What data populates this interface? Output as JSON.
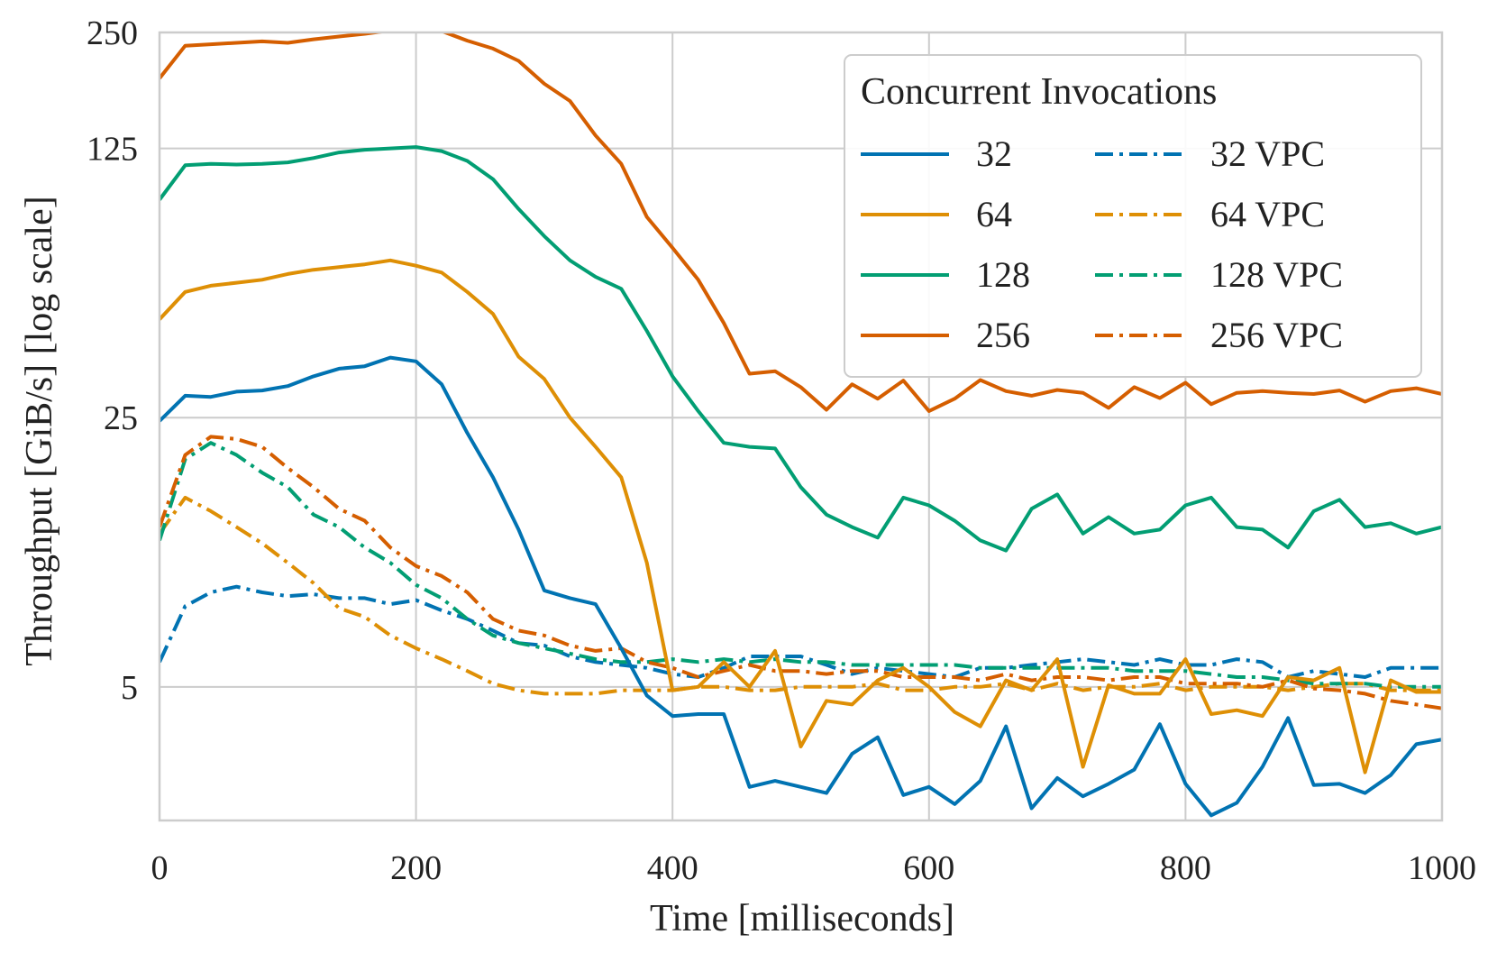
{
  "chart_data": {
    "type": "line",
    "title": "",
    "xlabel": "Time [milliseconds]",
    "ylabel": "Throughput [GiB/s] [log scale]",
    "xlim": [
      0,
      1000
    ],
    "ylim": [
      2.25,
      250
    ],
    "yscale": "log",
    "grid": true,
    "x_ticks": [
      0,
      200,
      400,
      600,
      800,
      1000
    ],
    "x_tick_labels": [
      "0",
      "200",
      "400",
      "600",
      "800",
      "1000"
    ],
    "y_ticks": [
      5,
      25,
      125,
      250
    ],
    "y_tick_labels": [
      "5",
      "25",
      "125",
      "250"
    ],
    "legend": {
      "title": "Concurrent Invocations",
      "placement": "top-right",
      "columns": 2
    },
    "x": [
      0,
      20,
      40,
      60,
      80,
      100,
      120,
      140,
      160,
      180,
      200,
      220,
      240,
      260,
      280,
      300,
      320,
      340,
      360,
      380,
      400,
      420,
      440,
      460,
      480,
      500,
      520,
      540,
      560,
      580,
      600,
      620,
      640,
      660,
      680,
      700,
      720,
      740,
      760,
      780,
      800,
      820,
      840,
      860,
      880,
      900,
      920,
      940,
      960,
      980,
      1000
    ],
    "series": [
      {
        "name": "32",
        "color": "#0173b2",
        "dash": "solid",
        "values": [
          24.5,
          28.5,
          28.3,
          29.2,
          29.4,
          30.2,
          32,
          33.5,
          34,
          35.8,
          35,
          30.5,
          22.8,
          17.5,
          12.8,
          8.9,
          8.5,
          8.2,
          6.3,
          4.75,
          4.2,
          4.25,
          4.25,
          2.75,
          2.85,
          2.75,
          2.65,
          3.35,
          3.7,
          2.62,
          2.75,
          2.48,
          2.85,
          3.95,
          2.42,
          2.9,
          2.6,
          2.8,
          3.05,
          4.0,
          2.8,
          2.32,
          2.5,
          3.1,
          4.15,
          2.78,
          2.8,
          2.65,
          2.95,
          3.55,
          3.65
        ]
      },
      {
        "name": "64",
        "color": "#de8f05",
        "dash": "solid",
        "values": [
          45,
          53,
          55,
          56,
          57,
          59,
          60.5,
          61.5,
          62.5,
          64,
          62,
          59.5,
          53,
          46.5,
          36,
          31.5,
          25,
          21,
          17.5,
          10.5,
          4.9,
          5.0,
          5.8,
          5.0,
          6.2,
          3.5,
          4.6,
          4.5,
          5.2,
          5.6,
          5.0,
          4.3,
          3.95,
          5.2,
          4.9,
          5.9,
          3.1,
          5.05,
          4.8,
          4.8,
          5.9,
          4.25,
          4.35,
          4.2,
          5.3,
          5.2,
          5.6,
          3.0,
          5.2,
          4.85,
          4.85
        ]
      },
      {
        "name": "128",
        "color": "#029e73",
        "dash": "solid",
        "values": [
          92,
          113,
          114,
          113.5,
          114,
          115,
          118,
          122,
          124,
          125,
          126,
          123,
          116,
          104,
          87,
          74,
          64,
          58,
          54,
          42,
          32,
          26,
          21.5,
          21,
          20.8,
          16.5,
          14,
          13,
          12.2,
          15.5,
          14.8,
          13.5,
          12,
          11.3,
          14.5,
          15.8,
          12.5,
          13.8,
          12.5,
          12.8,
          14.8,
          15.5,
          13,
          12.8,
          11.5,
          14.3,
          15.3,
          13,
          13.3,
          12.5,
          13
        ]
      },
      {
        "name": "256",
        "color": "#d55e00",
        "dash": "solid",
        "values": [
          190,
          231,
          233,
          235,
          237,
          235,
          240,
          244,
          248,
          253,
          258,
          252,
          238,
          227,
          211,
          184,
          166,
          135,
          114,
          83,
          69,
          57,
          44,
          32.5,
          33,
          30,
          26.2,
          30.5,
          28,
          31.2,
          26,
          28,
          31.3,
          29.3,
          28.5,
          29.5,
          29,
          26.5,
          30,
          28.1,
          30.8,
          27.1,
          29,
          29.3,
          29,
          28.8,
          29.4,
          27.5,
          29.3,
          29.8,
          28.8
        ]
      },
      {
        "name": "32 VPC",
        "color": "#0173b2",
        "dash": "dashdot",
        "values": [
          5.8,
          8.1,
          8.8,
          9.1,
          8.8,
          8.6,
          8.7,
          8.5,
          8.5,
          8.2,
          8.4,
          7.9,
          7.5,
          7.0,
          6.5,
          6.4,
          6.0,
          5.8,
          5.7,
          5.6,
          5.4,
          5.3,
          5.6,
          6.0,
          6.0,
          6.0,
          5.7,
          5.4,
          5.6,
          5.5,
          5.4,
          5.3,
          5.6,
          5.6,
          5.7,
          5.8,
          5.9,
          5.8,
          5.7,
          5.9,
          5.7,
          5.7,
          5.9,
          5.8,
          5.3,
          5.5,
          5.4,
          5.3,
          5.6,
          5.6,
          5.6
        ]
      },
      {
        "name": "64 VPC",
        "color": "#de8f05",
        "dash": "dashdot",
        "values": [
          12.5,
          15.5,
          14.3,
          13.0,
          11.8,
          10.5,
          9.3,
          8.0,
          7.6,
          6.8,
          6.3,
          5.9,
          5.5,
          5.1,
          4.9,
          4.8,
          4.8,
          4.8,
          4.9,
          4.9,
          4.9,
          5.0,
          5.0,
          4.9,
          4.9,
          5.0,
          5.0,
          5.0,
          5.1,
          4.9,
          4.9,
          5.0,
          5.0,
          5.1,
          4.9,
          5.1,
          4.9,
          5.0,
          5.0,
          5.1,
          4.9,
          5.0,
          5.0,
          5.0,
          4.9,
          5.0,
          5.1,
          5.1,
          4.9,
          4.9,
          4.9
        ]
      },
      {
        "name": "128 VPC",
        "color": "#029e73",
        "dash": "dashdot",
        "values": [
          12,
          19.5,
          21.5,
          20,
          18,
          16.5,
          14,
          13,
          11.5,
          10.5,
          9.2,
          8.5,
          7.5,
          6.8,
          6.5,
          6.3,
          6.1,
          5.9,
          5.8,
          5.8,
          5.9,
          5.8,
          5.9,
          5.8,
          5.9,
          5.8,
          5.8,
          5.7,
          5.7,
          5.7,
          5.7,
          5.7,
          5.6,
          5.6,
          5.6,
          5.6,
          5.6,
          5.6,
          5.5,
          5.5,
          5.5,
          5.4,
          5.3,
          5.3,
          5.2,
          5.1,
          5.1,
          5.1,
          5.0,
          5.0,
          5.0
        ]
      },
      {
        "name": "256 VPC",
        "color": "#d55e00",
        "dash": "dashdot",
        "values": [
          13,
          20,
          22.3,
          22,
          21,
          18.5,
          16.5,
          14.5,
          13.5,
          11.5,
          10.3,
          9.7,
          8.8,
          7.5,
          7.0,
          6.8,
          6.4,
          6.2,
          6.3,
          5.8,
          5.6,
          5.3,
          5.5,
          5.7,
          5.5,
          5.5,
          5.4,
          5.5,
          5.5,
          5.3,
          5.3,
          5.3,
          5.2,
          5.4,
          5.2,
          5.3,
          5.3,
          5.2,
          5.3,
          5.3,
          5.1,
          5.1,
          5.1,
          5.0,
          5.2,
          4.95,
          4.9,
          4.8,
          4.6,
          4.5,
          4.4
        ]
      }
    ]
  }
}
